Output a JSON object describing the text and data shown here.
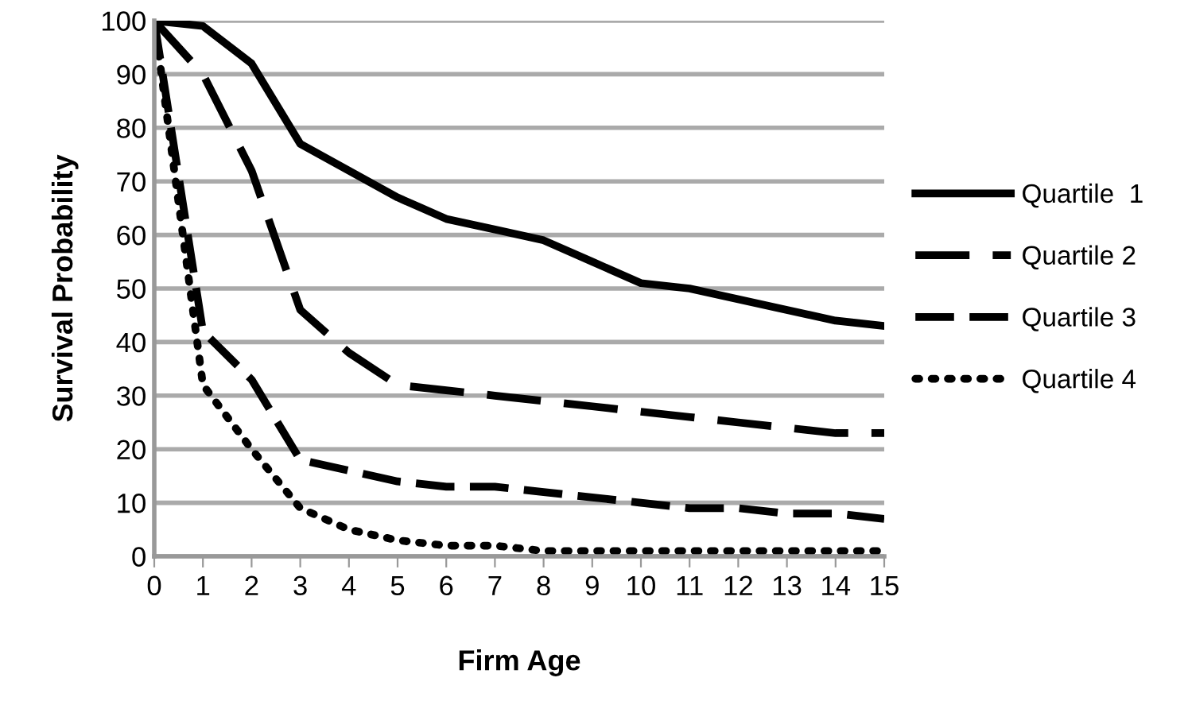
{
  "chart_data": {
    "type": "line",
    "xlabel": "Firm Age",
    "ylabel": "Survival Probability",
    "x": [
      0,
      1,
      2,
      3,
      4,
      5,
      6,
      7,
      8,
      9,
      10,
      11,
      12,
      13,
      14,
      15
    ],
    "series": [
      {
        "name": "Quartile  1",
        "color": "#000000",
        "line_style": "solid",
        "values": [
          100,
          99,
          92,
          77,
          72,
          67,
          63,
          61,
          59,
          55,
          51,
          50,
          48,
          46,
          44,
          43
        ]
      },
      {
        "name": "Quartile 2",
        "color": "#000000",
        "line_style": "longdash",
        "values": [
          100,
          90,
          72,
          46,
          38,
          32,
          31,
          30,
          29,
          28,
          27,
          26,
          25,
          24,
          23,
          23
        ]
      },
      {
        "name": "Quartile 3",
        "color": "#000000",
        "line_style": "dashed",
        "values": [
          100,
          42,
          33,
          18,
          16,
          14,
          13,
          13,
          12,
          11,
          10,
          9,
          9,
          8,
          8,
          7
        ]
      },
      {
        "name": "Quartile 4",
        "color": "#000000",
        "line_style": "dotted",
        "values": [
          100,
          32,
          20,
          9,
          5,
          3,
          2,
          2,
          1,
          1,
          1,
          1,
          1,
          1,
          1,
          1
        ]
      }
    ],
    "xlim": [
      0,
      15
    ],
    "xticks": [
      0,
      1,
      2,
      3,
      4,
      5,
      6,
      7,
      8,
      9,
      10,
      11,
      12,
      13,
      14,
      15
    ],
    "ylim": [
      0,
      100
    ],
    "yticks": [
      0,
      10,
      20,
      30,
      40,
      50,
      60,
      70,
      80,
      90,
      100
    ],
    "grid": "y",
    "legend": "right",
    "marker": "none"
  }
}
